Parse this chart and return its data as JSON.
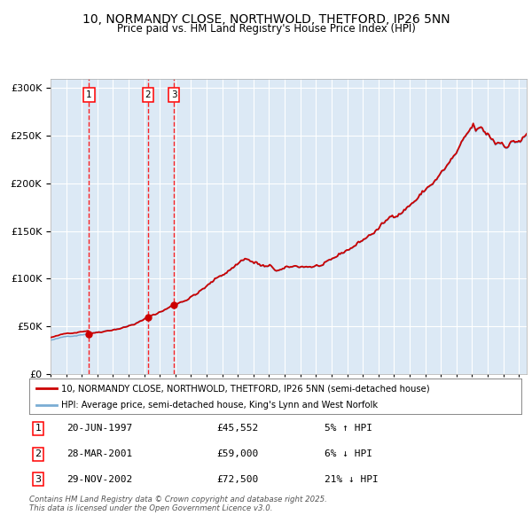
{
  "title": "10, NORMANDY CLOSE, NORTHWOLD, THETFORD, IP26 5NN",
  "subtitle": "Price paid vs. HM Land Registry's House Price Index (HPI)",
  "red_label": "10, NORMANDY CLOSE, NORTHWOLD, THETFORD, IP26 5NN (semi-detached house)",
  "blue_label": "HPI: Average price, semi-detached house, King's Lynn and West Norfolk",
  "footer": "Contains HM Land Registry data © Crown copyright and database right 2025.\nThis data is licensed under the Open Government Licence v3.0.",
  "transactions": [
    {
      "num": 1,
      "date": "20-JUN-1997",
      "price": 45552,
      "hpi_rel": "5% ↑ HPI"
    },
    {
      "num": 2,
      "date": "28-MAR-2001",
      "price": 59000,
      "hpi_rel": "6% ↓ HPI"
    },
    {
      "num": 3,
      "date": "29-NOV-2002",
      "price": 72500,
      "hpi_rel": "21% ↓ HPI"
    }
  ],
  "transaction_dates_decimal": [
    1997.47,
    2001.24,
    2002.91
  ],
  "plot_bg_color": "#dce9f5",
  "red_color": "#cc0000",
  "blue_color": "#7aadd4",
  "grid_color": "#ffffff",
  "ylim": [
    0,
    310000
  ],
  "yticks": [
    0,
    50000,
    100000,
    150000,
    200000,
    250000,
    300000
  ],
  "xlim_start": 1995,
  "xlim_end": 2025.5
}
